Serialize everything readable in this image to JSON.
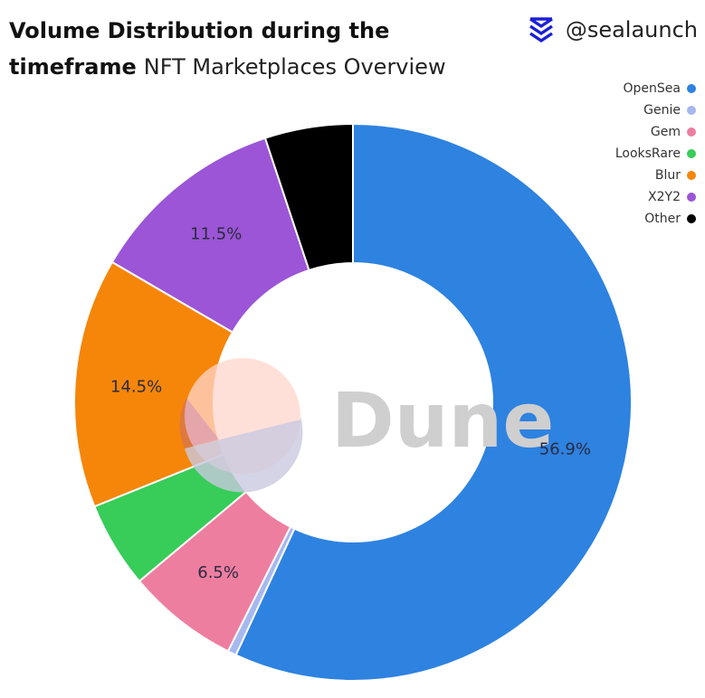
{
  "header": {
    "title": "Volume Distribution during the timeframe",
    "subtitle": "NFT Marketplaces Overview",
    "handle": "@sealaunch"
  },
  "watermark": {
    "text": "Dune"
  },
  "icons": {
    "brand": "sealaunch-logo-icon",
    "watermark": "dune-logo-icon"
  },
  "chart_data": {
    "type": "pie",
    "donut": true,
    "legend_position": "top-right",
    "slices": [
      {
        "name": "OpenSea",
        "value": 56.9,
        "label": "56.9%",
        "color": "#2e82e0"
      },
      {
        "name": "Genie",
        "value": 0.5,
        "label": "",
        "color": "#a6b8ef"
      },
      {
        "name": "Gem",
        "value": 6.5,
        "label": "6.5%",
        "color": "#ee7ea0"
      },
      {
        "name": "LooksRare",
        "value": 5.0,
        "label": "",
        "color": "#38cc58"
      },
      {
        "name": "Blur",
        "value": 14.5,
        "label": "14.5%",
        "color": "#f5860a"
      },
      {
        "name": "X2Y2",
        "value": 11.5,
        "label": "11.5%",
        "color": "#9b55d6"
      },
      {
        "name": "Other",
        "value": 5.1,
        "label": "",
        "color": "#000000"
      }
    ]
  }
}
